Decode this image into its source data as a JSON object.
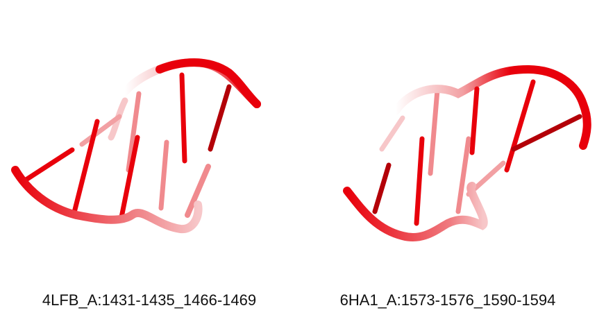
{
  "panels": [
    {
      "caption": "4LFB_A:1431-1435_1466-1469"
    },
    {
      "caption": "6HA1_A:1573-1576_1590-1594"
    }
  ],
  "colors": {
    "rna": "#e8000b",
    "rna_dark": "#b30008",
    "rna_faded": "#f3a3a6"
  }
}
